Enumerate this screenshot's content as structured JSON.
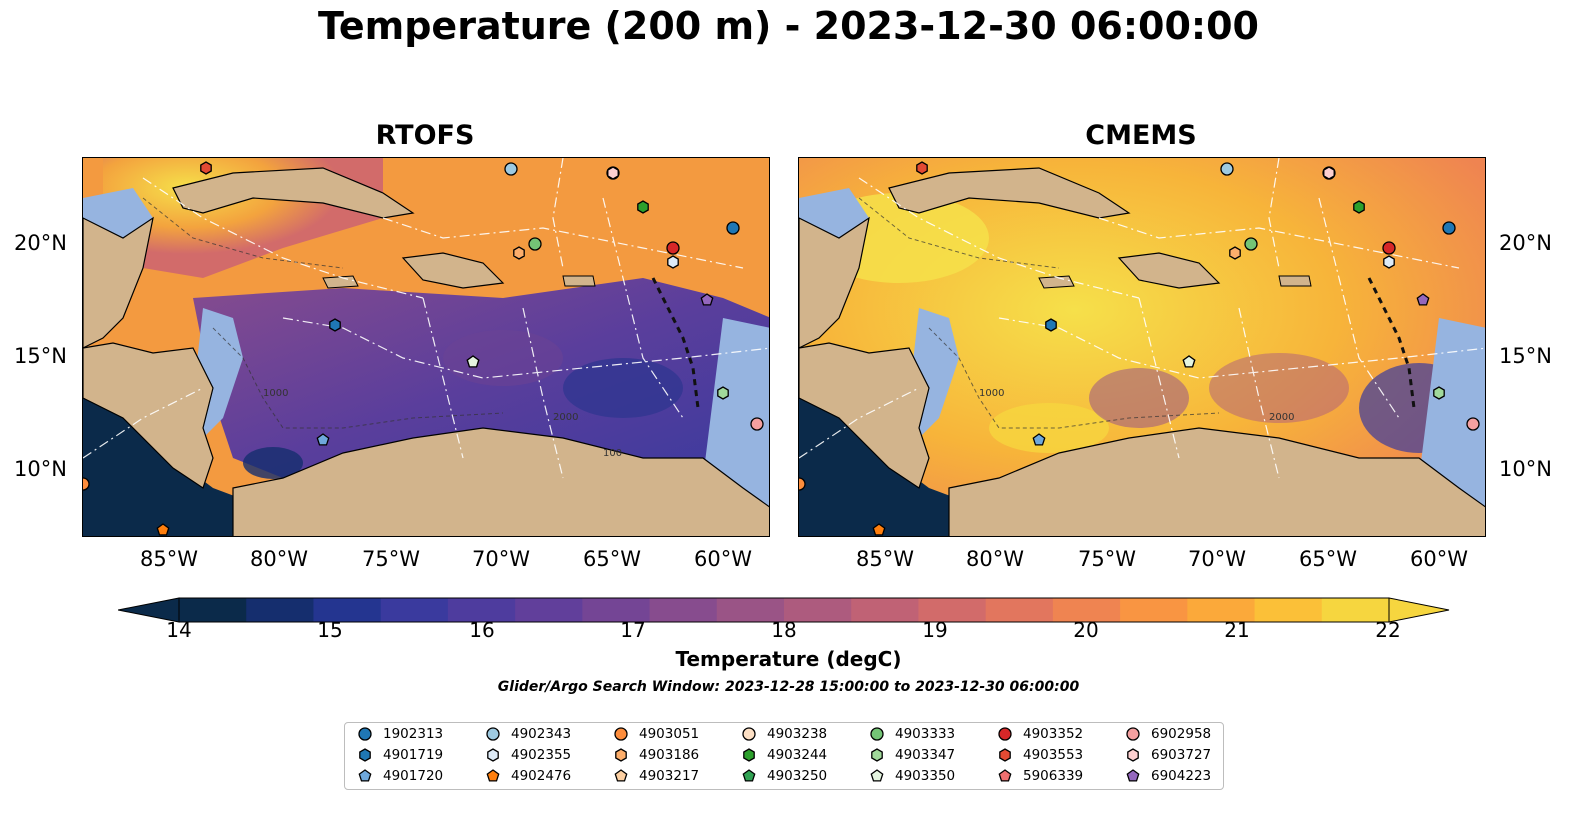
{
  "title": "Temperature (200 m) - 2023-12-30 06:00:00",
  "panels": [
    {
      "title": "RTOFS"
    },
    {
      "title": "CMEMS"
    }
  ],
  "x_ticks": [
    "85°W",
    "80°W",
    "75°W",
    "70°W",
    "65°W",
    "60°W"
  ],
  "y_ticks": [
    "20°N",
    "15°N",
    "10°N"
  ],
  "contour_labels": [
    "1000",
    "2000",
    "100"
  ],
  "colorbar": {
    "label": "Temperature (degC)",
    "ticks": [
      "14",
      "15",
      "16",
      "17",
      "18",
      "19",
      "20",
      "21",
      "22"
    ],
    "range": [
      14,
      22
    ],
    "colors": [
      "#0b2a4a",
      "#152e6e",
      "#243590",
      "#3a3a9e",
      "#4e3c9e",
      "#613f9b",
      "#744595",
      "#874c8e",
      "#9a5486",
      "#ad5b7e",
      "#c06275",
      "#d26b6a",
      "#e2765e",
      "#ef8451",
      "#f99542",
      "#fba93a",
      "#fbc038",
      "#f6d63f"
    ]
  },
  "search_window": "Glider/Argo Search Window: 2023-12-28 15:00:00 to 2023-12-30 06:00:00",
  "colors": {
    "land": "#d2b48c",
    "shelf": "#96b4e0",
    "deep_water": "#0b2a4a"
  },
  "legend": [
    {
      "id": "1902313",
      "shape": "circle",
      "color": "#1f77b4"
    },
    {
      "id": "4901719",
      "shape": "hexagon",
      "color": "#1f77b4"
    },
    {
      "id": "4901720",
      "shape": "pentagon",
      "color": "#6fa8dc"
    },
    {
      "id": "4902343",
      "shape": "circle",
      "color": "#9ecae1"
    },
    {
      "id": "4902355",
      "shape": "hexagon",
      "color": "#deebf7"
    },
    {
      "id": "4902476",
      "shape": "pentagon",
      "color": "#ff7f0e"
    },
    {
      "id": "4903051",
      "shape": "circle",
      "color": "#fd8d3c"
    },
    {
      "id": "4903186",
      "shape": "hexagon",
      "color": "#fdae6b"
    },
    {
      "id": "4903217",
      "shape": "pentagon",
      "color": "#fdd0a2"
    },
    {
      "id": "4903238",
      "shape": "circle",
      "color": "#fde0c5"
    },
    {
      "id": "4903244",
      "shape": "hexagon",
      "color": "#2ca02c"
    },
    {
      "id": "4903250",
      "shape": "pentagon",
      "color": "#31a354"
    },
    {
      "id": "4903333",
      "shape": "circle",
      "color": "#74c476"
    },
    {
      "id": "4903347",
      "shape": "hexagon",
      "color": "#a1d99b"
    },
    {
      "id": "4903350",
      "shape": "pentagon",
      "color": "#e5f5e0"
    },
    {
      "id": "4903352",
      "shape": "circle",
      "color": "#d62728"
    },
    {
      "id": "4903553",
      "shape": "hexagon",
      "color": "#e34a33"
    },
    {
      "id": "5906339",
      "shape": "pentagon",
      "color": "#f07070"
    },
    {
      "id": "6902958",
      "shape": "circle",
      "color": "#f4a0a0"
    },
    {
      "id": "6903727",
      "shape": "hexagon",
      "color": "#fdd0d0"
    },
    {
      "id": "6904223",
      "shape": "pentagon",
      "color": "#9467bd"
    }
  ]
}
